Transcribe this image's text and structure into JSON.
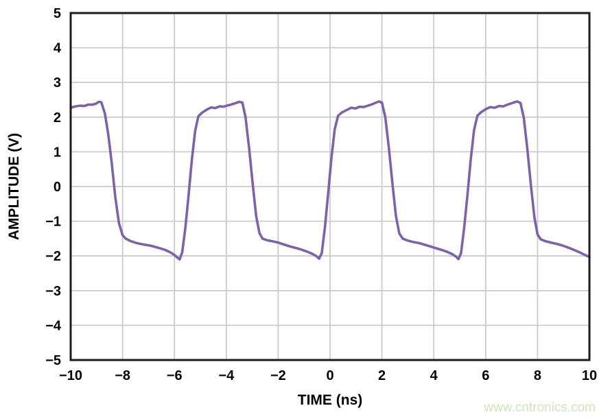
{
  "chart_data": {
    "type": "line",
    "title": "",
    "xlabel": "TIME (ns)",
    "ylabel": "AMPLITUDE (V)",
    "xlim": [
      -10,
      10
    ],
    "ylim": [
      -5,
      5
    ],
    "grid": true,
    "legend": "none",
    "x_ticks": [
      -10,
      -8,
      -6,
      -4,
      -2,
      0,
      2,
      4,
      6,
      8,
      10
    ],
    "x_tick_labels": [
      "−10",
      "−8",
      "−6",
      "−4",
      "−2",
      "0",
      "2",
      "4",
      "6",
      "8",
      "10"
    ],
    "y_ticks": [
      5,
      4,
      3,
      2,
      1,
      0,
      -1,
      -2,
      -3,
      -4,
      -5
    ],
    "y_tick_labels": [
      "5",
      "4",
      "3",
      "2",
      "1",
      "0",
      "−1",
      "−2",
      "−3",
      "−4",
      "−5"
    ],
    "series": [
      {
        "name": "square-wave-amplitude",
        "color": "#7c62ae",
        "points": [
          [
            -10.0,
            2.27
          ],
          [
            -9.82,
            2.31
          ],
          [
            -9.64,
            2.33
          ],
          [
            -9.48,
            2.32
          ],
          [
            -9.32,
            2.36
          ],
          [
            -9.16,
            2.36
          ],
          [
            -9.02,
            2.39
          ],
          [
            -8.92,
            2.44
          ],
          [
            -8.82,
            2.43
          ],
          [
            -8.68,
            2.1
          ],
          [
            -8.55,
            1.5
          ],
          [
            -8.42,
            0.7
          ],
          [
            -8.28,
            -0.3
          ],
          [
            -8.14,
            -1.05
          ],
          [
            -8.0,
            -1.4
          ],
          [
            -7.88,
            -1.5
          ],
          [
            -7.7,
            -1.57
          ],
          [
            -7.45,
            -1.63
          ],
          [
            -7.2,
            -1.67
          ],
          [
            -6.95,
            -1.7
          ],
          [
            -6.75,
            -1.74
          ],
          [
            -6.55,
            -1.78
          ],
          [
            -6.35,
            -1.83
          ],
          [
            -6.15,
            -1.9
          ],
          [
            -6.0,
            -1.97
          ],
          [
            -5.9,
            -2.04
          ],
          [
            -5.8,
            -2.1
          ],
          [
            -5.7,
            -1.9
          ],
          [
            -5.58,
            -1.2
          ],
          [
            -5.46,
            -0.3
          ],
          [
            -5.33,
            0.75
          ],
          [
            -5.2,
            1.6
          ],
          [
            -5.08,
            2.02
          ],
          [
            -4.95,
            2.12
          ],
          [
            -4.75,
            2.22
          ],
          [
            -4.58,
            2.28
          ],
          [
            -4.42,
            2.26
          ],
          [
            -4.26,
            2.31
          ],
          [
            -4.1,
            2.3
          ],
          [
            -3.94,
            2.34
          ],
          [
            -3.78,
            2.37
          ],
          [
            -3.62,
            2.41
          ],
          [
            -3.5,
            2.44
          ],
          [
            -3.38,
            2.42
          ],
          [
            -3.26,
            2.0
          ],
          [
            -3.12,
            1.1
          ],
          [
            -2.98,
            0.05
          ],
          [
            -2.85,
            -0.85
          ],
          [
            -2.72,
            -1.35
          ],
          [
            -2.6,
            -1.5
          ],
          [
            -2.42,
            -1.55
          ],
          [
            -2.22,
            -1.58
          ],
          [
            -2.02,
            -1.61
          ],
          [
            -1.82,
            -1.66
          ],
          [
            -1.62,
            -1.71
          ],
          [
            -1.42,
            -1.75
          ],
          [
            -1.22,
            -1.79
          ],
          [
            -1.02,
            -1.84
          ],
          [
            -0.84,
            -1.89
          ],
          [
            -0.68,
            -1.94
          ],
          [
            -0.54,
            -2.0
          ],
          [
            -0.42,
            -2.08
          ],
          [
            -0.32,
            -1.92
          ],
          [
            -0.2,
            -1.2
          ],
          [
            -0.08,
            -0.25
          ],
          [
            0.05,
            0.8
          ],
          [
            0.18,
            1.65
          ],
          [
            0.31,
            2.04
          ],
          [
            0.45,
            2.13
          ],
          [
            0.65,
            2.21
          ],
          [
            0.82,
            2.27
          ],
          [
            0.98,
            2.25
          ],
          [
            1.14,
            2.3
          ],
          [
            1.3,
            2.29
          ],
          [
            1.46,
            2.33
          ],
          [
            1.62,
            2.37
          ],
          [
            1.78,
            2.42
          ],
          [
            1.88,
            2.45
          ],
          [
            2.0,
            2.42
          ],
          [
            2.13,
            2.0
          ],
          [
            2.27,
            1.1
          ],
          [
            2.41,
            0.05
          ],
          [
            2.54,
            -0.85
          ],
          [
            2.67,
            -1.35
          ],
          [
            2.8,
            -1.5
          ],
          [
            3.0,
            -1.56
          ],
          [
            3.22,
            -1.6
          ],
          [
            3.44,
            -1.63
          ],
          [
            3.66,
            -1.68
          ],
          [
            3.88,
            -1.73
          ],
          [
            4.1,
            -1.78
          ],
          [
            4.32,
            -1.83
          ],
          [
            4.54,
            -1.89
          ],
          [
            4.72,
            -1.95
          ],
          [
            4.86,
            -2.02
          ],
          [
            4.95,
            -2.09
          ],
          [
            5.05,
            -1.92
          ],
          [
            5.17,
            -1.2
          ],
          [
            5.29,
            -0.3
          ],
          [
            5.42,
            0.75
          ],
          [
            5.55,
            1.62
          ],
          [
            5.68,
            2.04
          ],
          [
            5.82,
            2.14
          ],
          [
            6.0,
            2.23
          ],
          [
            6.18,
            2.29
          ],
          [
            6.35,
            2.27
          ],
          [
            6.52,
            2.32
          ],
          [
            6.68,
            2.31
          ],
          [
            6.84,
            2.36
          ],
          [
            7.0,
            2.4
          ],
          [
            7.12,
            2.43
          ],
          [
            7.22,
            2.45
          ],
          [
            7.34,
            2.41
          ],
          [
            7.47,
            1.98
          ],
          [
            7.61,
            1.05
          ],
          [
            7.75,
            0.0
          ],
          [
            7.88,
            -0.9
          ],
          [
            8.0,
            -1.38
          ],
          [
            8.12,
            -1.52
          ],
          [
            8.32,
            -1.58
          ],
          [
            8.55,
            -1.62
          ],
          [
            8.78,
            -1.66
          ],
          [
            9.0,
            -1.71
          ],
          [
            9.22,
            -1.77
          ],
          [
            9.45,
            -1.84
          ],
          [
            9.66,
            -1.91
          ],
          [
            9.85,
            -1.98
          ],
          [
            10.0,
            -2.03
          ]
        ]
      }
    ]
  },
  "styles": {
    "line_color": "#7c62ae",
    "grid_color": "#cbcbcb",
    "axis_frame_color": "#1c1c1c",
    "label_color": "#000000",
    "background_color": "#ffffff"
  },
  "watermark": {
    "text": "www.cntronics.com",
    "color": "#cde8b9"
  }
}
